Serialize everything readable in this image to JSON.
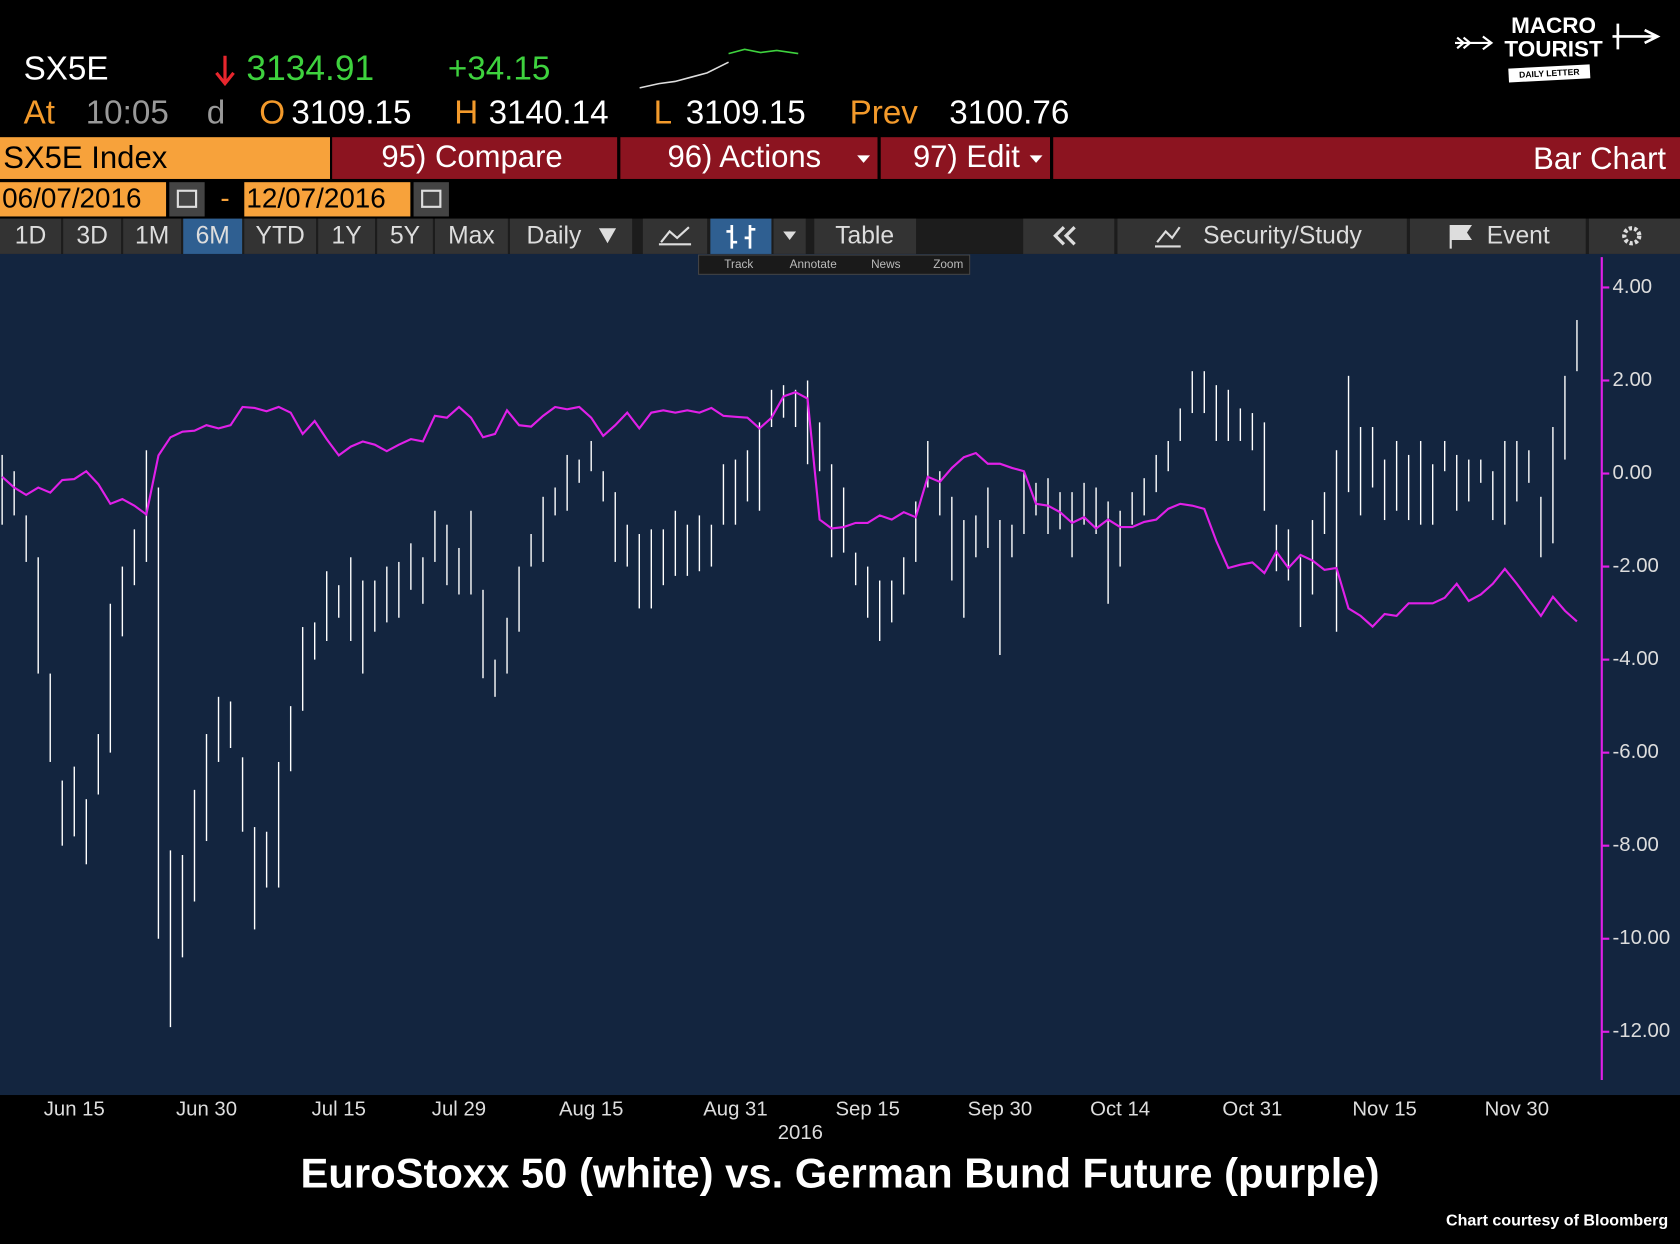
{
  "header": {
    "ticker": "SX5E",
    "last": "3134.91",
    "change": "+34.15",
    "time_label": "At",
    "time": "10:05",
    "time_flag": "d",
    "open_label": "O",
    "open": "3109.15",
    "high_label": "H",
    "high": "3140.14",
    "low_label": "L",
    "low": "3109.15",
    "prev_label": "Prev",
    "prev": "3100.76"
  },
  "logo": {
    "line1": "MACRO",
    "line2": "TOURIST",
    "line3": "DAILY LETTER"
  },
  "menu": {
    "security": "SX5E Index",
    "items": [
      "95) Compare",
      "96) Actions",
      "97) Edit"
    ],
    "chart_type": "Bar Chart"
  },
  "dates": {
    "start": "06/07/2016",
    "separator": "-",
    "end": "12/07/2016"
  },
  "toolbar": {
    "ranges": [
      "1D",
      "3D",
      "1M",
      "6M",
      "YTD",
      "1Y",
      "5Y",
      "Max"
    ],
    "selected": 3,
    "frequency": "Daily",
    "table": "Table",
    "security_study": "Security/Study",
    "event": "Event"
  },
  "subtoolbar": [
    "Track",
    "Annotate",
    "News",
    "Zoom"
  ],
  "footer": {
    "credit": "Chart courtesy of Bloomberg"
  },
  "chart_data": {
    "type": "bar",
    "title": "EuroStoxx 50 (white) vs. German Bund Future (purple)",
    "x_year": "2016",
    "categories": [
      null,
      null,
      null,
      null,
      null,
      null,
      "Jun 15",
      null,
      null,
      null,
      null,
      null,
      null,
      null,
      null,
      null,
      null,
      "Jun 30",
      null,
      null,
      null,
      null,
      null,
      null,
      null,
      null,
      null,
      null,
      "Jul 15",
      null,
      null,
      null,
      null,
      null,
      null,
      null,
      null,
      null,
      "Jul 29",
      null,
      null,
      null,
      null,
      null,
      null,
      null,
      null,
      null,
      null,
      "Aug 15",
      null,
      null,
      null,
      null,
      null,
      null,
      null,
      null,
      null,
      null,
      null,
      "Aug 31",
      null,
      null,
      null,
      null,
      null,
      null,
      null,
      null,
      null,
      null,
      "Sep 15",
      null,
      null,
      null,
      null,
      null,
      null,
      null,
      null,
      null,
      null,
      "Sep 30",
      null,
      null,
      null,
      null,
      null,
      null,
      null,
      null,
      null,
      "Oct 14",
      null,
      null,
      null,
      null,
      null,
      null,
      null,
      null,
      null,
      null,
      "Oct 31",
      null,
      null,
      null,
      null,
      null,
      null,
      null,
      null,
      null,
      null,
      "Nov 15",
      null,
      null,
      null,
      null,
      null,
      null,
      null,
      null,
      null,
      null,
      "Nov 30",
      null,
      null,
      null,
      null,
      null
    ],
    "series": [
      {
        "type": "range-bar",
        "color": "#ffffff",
        "high": [
          0.4,
          0.05,
          -0.9,
          -1.8,
          -4.3,
          -6.6,
          -6.3,
          -7.0,
          -5.6,
          -2.8,
          -2.0,
          -1.2,
          0.5,
          -0.3,
          -8.1,
          -8.2,
          -6.8,
          -5.6,
          -4.8,
          -4.9,
          -6.1,
          -7.6,
          -7.7,
          -6.2,
          -5.0,
          -3.3,
          -3.2,
          -2.1,
          -2.4,
          -1.8,
          -2.3,
          -2.3,
          -2.0,
          -1.9,
          -1.5,
          -1.8,
          -0.8,
          -1.1,
          -1.6,
          -0.8,
          -2.5,
          -4.0,
          -3.1,
          -2.0,
          -1.3,
          -0.5,
          -0.3,
          0.4,
          0.3,
          0.7,
          0.05,
          -0.4,
          -1.1,
          -1.3,
          -1.2,
          -1.2,
          -0.8,
          -1.1,
          -0.9,
          -1.1,
          0.2,
          0.3,
          0.5,
          1.1,
          1.8,
          1.9,
          1.8,
          2.0,
          1.1,
          0.2,
          -0.3,
          -1.7,
          -2.0,
          -2.3,
          -2.3,
          -1.8,
          -0.6,
          0.7,
          0.05,
          -0.5,
          -1.0,
          -0.9,
          -0.3,
          -1.0,
          -1.1,
          0.05,
          -0.2,
          -0.1,
          -0.4,
          -0.4,
          -0.2,
          -0.3,
          -0.6,
          -0.8,
          -0.4,
          -0.1,
          0.4,
          0.7,
          1.4,
          2.2,
          2.2,
          1.9,
          1.8,
          1.4,
          1.3,
          1.1,
          -1.1,
          -1.2,
          -1.8,
          -1.0,
          -0.4,
          0.5,
          2.1,
          1.0,
          1.0,
          0.3,
          0.7,
          0.4,
          0.7,
          0.2,
          0.7,
          0.4,
          0.3,
          0.3,
          0.05,
          0.7,
          0.7,
          0.5,
          -0.5,
          1.0,
          2.1,
          3.3
        ],
        "low": [
          -1.1,
          -0.9,
          -1.9,
          -4.3,
          -6.2,
          -8.0,
          -7.8,
          -8.4,
          -6.9,
          -6.0,
          -3.5,
          -2.4,
          -1.9,
          -10.0,
          -11.9,
          -10.4,
          -9.2,
          -7.9,
          -6.2,
          -5.9,
          -7.7,
          -9.8,
          -8.9,
          -8.9,
          -6.4,
          -5.1,
          -4.0,
          -3.6,
          -3.1,
          -3.6,
          -4.3,
          -3.4,
          -3.2,
          -3.1,
          -2.5,
          -2.8,
          -1.9,
          -2.4,
          -2.6,
          -2.6,
          -4.4,
          -4.8,
          -4.3,
          -3.4,
          -2.0,
          -1.9,
          -0.9,
          -0.8,
          -0.2,
          0.05,
          -0.6,
          -1.9,
          -2.0,
          -2.9,
          -2.9,
          -2.4,
          -2.2,
          -2.2,
          -2.1,
          -2.0,
          -1.1,
          -1.1,
          -0.6,
          -0.8,
          1.0,
          1.2,
          1.0,
          0.2,
          0.05,
          -1.8,
          -1.7,
          -2.4,
          -3.1,
          -3.6,
          -3.2,
          -2.6,
          -1.9,
          -0.3,
          -0.9,
          -2.3,
          -3.1,
          -1.8,
          -1.6,
          -3.9,
          -1.8,
          -1.3,
          -0.9,
          -1.3,
          -1.2,
          -1.8,
          -1.1,
          -1.3,
          -2.8,
          -2.0,
          -1.1,
          -0.9,
          -0.4,
          0.05,
          0.7,
          1.3,
          1.3,
          0.7,
          0.7,
          0.7,
          0.5,
          -0.8,
          -2.1,
          -2.3,
          -3.3,
          -2.6,
          -1.3,
          -3.4,
          -0.4,
          -0.9,
          -0.3,
          -1.0,
          -0.8,
          -1.0,
          -1.1,
          -1.1,
          0.05,
          -0.8,
          -0.6,
          -0.2,
          -1.0,
          -1.1,
          -0.6,
          -0.2,
          -1.8,
          -1.5,
          0.3,
          2.2
        ]
      },
      {
        "type": "line",
        "color": "#e020e8",
        "values": [
          -0.07,
          -0.3,
          -0.46,
          -0.3,
          -0.41,
          -0.14,
          -0.12,
          0.05,
          -0.23,
          -0.65,
          -0.55,
          -0.69,
          -0.88,
          0.39,
          0.78,
          0.9,
          0.92,
          1.04,
          0.97,
          1.04,
          1.43,
          1.41,
          1.34,
          1.43,
          1.31,
          0.85,
          1.13,
          0.74,
          0.39,
          0.58,
          0.69,
          0.62,
          0.48,
          0.62,
          0.74,
          0.69,
          1.24,
          1.2,
          1.43,
          1.2,
          0.78,
          0.85,
          1.36,
          1.04,
          1.01,
          1.24,
          1.43,
          1.38,
          1.43,
          1.2,
          0.81,
          1.04,
          1.31,
          0.97,
          1.31,
          1.36,
          1.31,
          1.36,
          1.31,
          1.41,
          1.24,
          1.22,
          1.2,
          0.97,
          1.2,
          1.66,
          1.75,
          1.61,
          -0.99,
          -1.18,
          -1.15,
          -1.06,
          -1.06,
          -0.9,
          -0.99,
          -0.83,
          -0.94,
          -0.07,
          -0.18,
          0.12,
          0.35,
          0.44,
          0.21,
          0.21,
          0.12,
          0.05,
          -0.65,
          -0.69,
          -0.83,
          -1.06,
          -0.94,
          -1.18,
          -0.99,
          -1.15,
          -1.15,
          -1.04,
          -0.99,
          -0.76,
          -0.65,
          -0.69,
          -0.76,
          -1.45,
          -2.03,
          -1.96,
          -1.91,
          -2.14,
          -1.68,
          -2.03,
          -1.75,
          -1.87,
          -2.07,
          -2.03,
          -2.9,
          -3.06,
          -3.29,
          -3.02,
          -3.06,
          -2.79,
          -2.79,
          -2.79,
          -2.67,
          -2.37,
          -2.74,
          -2.6,
          -2.37,
          -2.05,
          -2.37,
          -2.72,
          -3.06,
          -2.65,
          -2.95,
          -3.18
        ]
      }
    ],
    "ylim": [
      -13.36,
      4.72
    ],
    "yticks": [
      {
        "value": 4,
        "label": "4.00"
      },
      {
        "value": 2,
        "label": "2.00"
      },
      {
        "value": 0,
        "label": "0.00"
      },
      {
        "value": -2,
        "label": "-2.00"
      },
      {
        "value": -4,
        "label": "-4.00"
      },
      {
        "value": -6,
        "label": "-6.00"
      },
      {
        "value": -8,
        "label": "-8.00"
      },
      {
        "value": -10,
        "label": "-10.00"
      },
      {
        "value": -12,
        "label": "-12.00"
      }
    ],
    "axis_color": "#e020e8",
    "background": "#13253f"
  }
}
